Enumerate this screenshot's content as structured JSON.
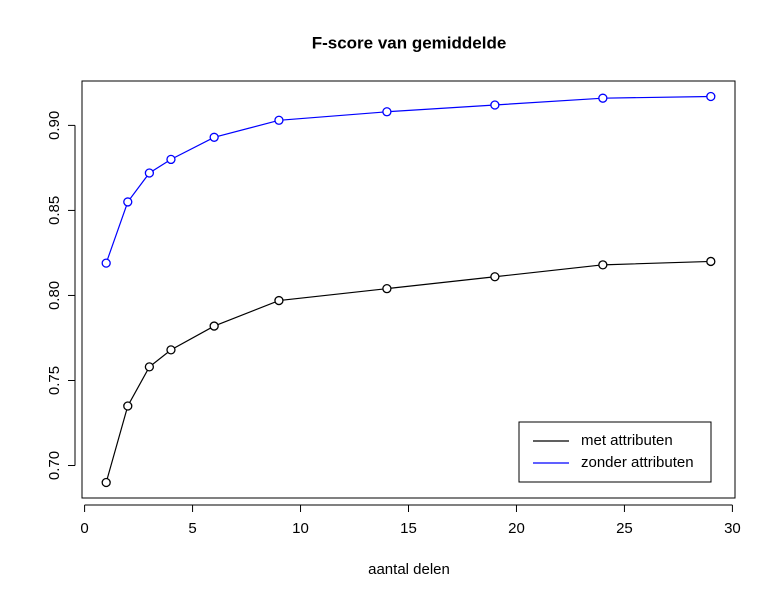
{
  "chart_data": {
    "type": "line",
    "title": "F-score van gemiddelde",
    "x_label": "aantal delen",
    "x": [
      1,
      2,
      3,
      4,
      6,
      9,
      14,
      19,
      24,
      29
    ],
    "series": [
      {
        "name": "met attributen",
        "color": "#000000",
        "values": [
          0.69,
          0.735,
          0.758,
          0.768,
          0.782,
          0.797,
          0.804,
          0.811,
          0.818,
          0.82
        ]
      },
      {
        "name": "zonder attributen",
        "color": "#0000ff",
        "values": [
          0.819,
          0.855,
          0.872,
          0.88,
          0.893,
          0.903,
          0.908,
          0.912,
          0.916,
          0.917
        ]
      }
    ],
    "xlim": [
      -0.12,
      30.12
    ],
    "xticks": [
      0,
      5,
      10,
      15,
      20,
      25,
      30
    ],
    "ylim": [
      0.6809,
      0.9261
    ],
    "yticks": [
      {
        "value": 0.7,
        "label": "0.70"
      },
      {
        "value": 0.75,
        "label": "0.75"
      },
      {
        "value": 0.8,
        "label": "0.80"
      },
      {
        "value": 0.85,
        "label": "0.85"
      },
      {
        "value": 0.9,
        "label": "0.90"
      }
    ],
    "legend": "bottomright",
    "grid": false
  }
}
